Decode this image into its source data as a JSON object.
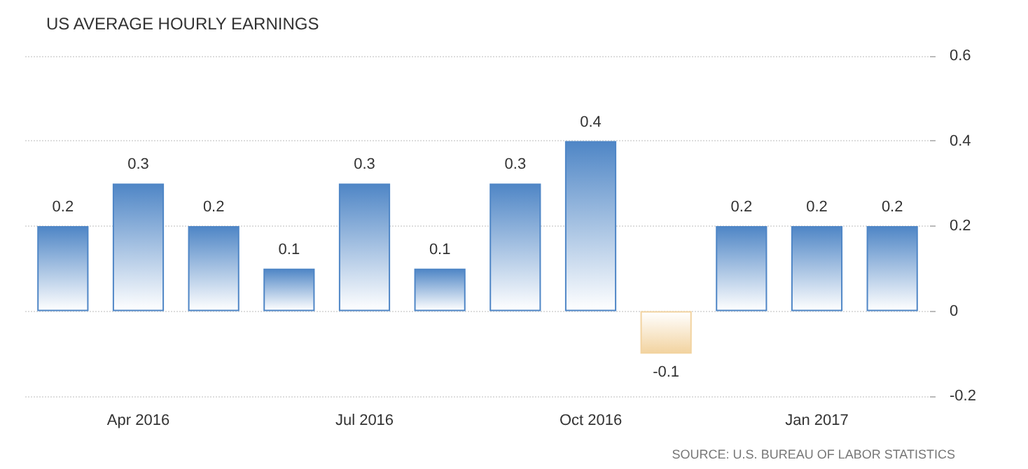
{
  "chart_data": {
    "type": "bar",
    "title": "US AVERAGE HOURLY EARNINGS",
    "categories": [
      null,
      "Apr 2016",
      null,
      null,
      "Jul 2016",
      null,
      null,
      "Oct 2016",
      null,
      null,
      "Jan 2017",
      null
    ],
    "values": [
      0.2,
      0.3,
      0.2,
      0.1,
      0.3,
      0.1,
      0.3,
      0.4,
      -0.1,
      0.2,
      0.2,
      0.2
    ],
    "colors": [
      "#4f86c6",
      "#4f86c6",
      "#4f86c6",
      "#4f86c6",
      "#4f86c6",
      "#4f86c6",
      "#4f86c6",
      "#4f86c6",
      "#f2d3a0",
      "#4f86c6",
      "#4f86c6",
      "#4f86c6"
    ],
    "ylim": [
      -0.2,
      0.6
    ],
    "yticks": [
      -0.2,
      0,
      0.2,
      0.4,
      0.6
    ],
    "grid": "y",
    "data_labels": true,
    "annotations": [
      "SOURCE: U.S. BUREAU OF LABOR STATISTICS"
    ]
  }
}
